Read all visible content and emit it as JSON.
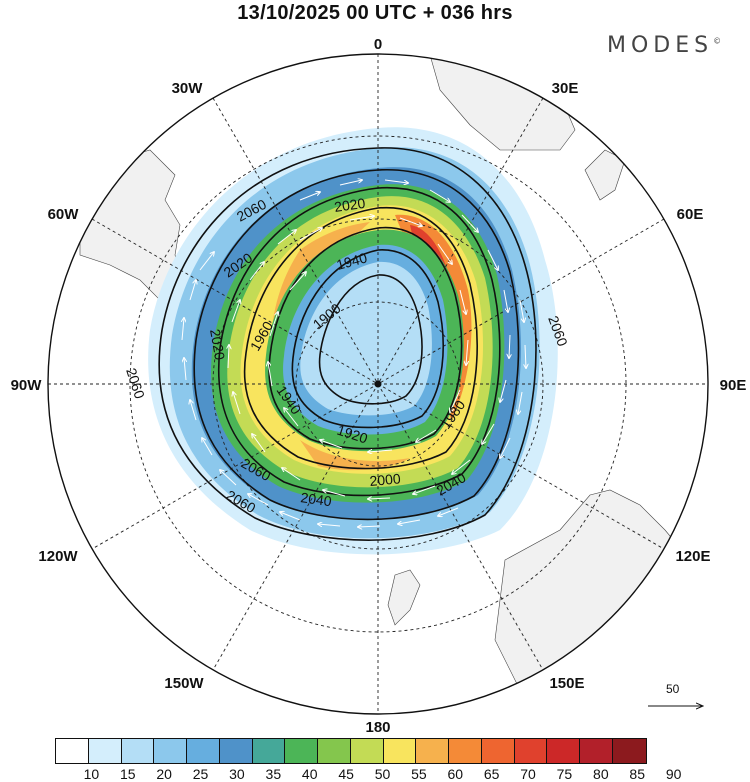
{
  "title": "13/10/2025  00 UTC  + 036 hrs",
  "brand": "MODES",
  "brand_mark": "©",
  "longitude_labels": {
    "top": "0",
    "bottom": "180",
    "left": "90W",
    "right": "90E",
    "w30": "30W",
    "e30": "30E",
    "w60": "60W",
    "e60": "60E",
    "w120": "120W",
    "e120": "120E",
    "w150": "150W",
    "e150": "150E"
  },
  "contour_labels": [
    "2060",
    "2020",
    "1940",
    "1900",
    "1960",
    "2020",
    "2020",
    "2060",
    "2060",
    "1940",
    "1920",
    "1980",
    "2000",
    "2040",
    "2060",
    "2040",
    "2060"
  ],
  "reference_vector": {
    "label": "50",
    "icon": "arrow-right-icon"
  },
  "colorbar": {
    "colors": [
      "#ffffff",
      "#d4eefc",
      "#b4def6",
      "#8cc8ec",
      "#66aedf",
      "#4f92c9",
      "#45a899",
      "#4cb557",
      "#84c64d",
      "#c3db55",
      "#f8e45e",
      "#f6b14d",
      "#f48a37",
      "#ee6530",
      "#e0412d",
      "#cc2828",
      "#b2202a",
      "#8c1a1e"
    ],
    "tick_labels": [
      "10",
      "15",
      "20",
      "25",
      "30",
      "35",
      "40",
      "45",
      "50",
      "55",
      "60",
      "65",
      "70",
      "75",
      "80",
      "85",
      "90"
    ]
  }
}
